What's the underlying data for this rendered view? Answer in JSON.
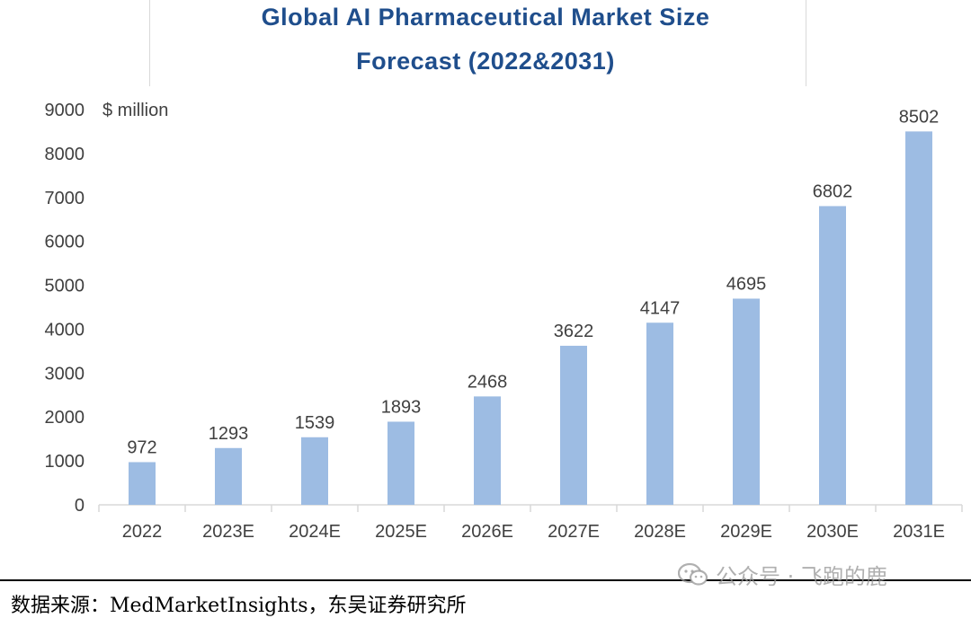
{
  "chart_data": {
    "type": "bar",
    "title": "Global AI Pharmaceutical Market Size",
    "subtitle": "Forecast (2022&2031)",
    "ylabel": "$ million",
    "xlabel": "",
    "ylim": [
      0,
      9000
    ],
    "yticks": [
      0,
      1000,
      2000,
      3000,
      4000,
      5000,
      6000,
      7000,
      8000,
      9000
    ],
    "categories": [
      "2022",
      "2023E",
      "2024E",
      "2025E",
      "2026E",
      "2027E",
      "2028E",
      "2029E",
      "2030E",
      "2031E"
    ],
    "values": [
      972,
      1293,
      1539,
      1893,
      2468,
      3622,
      4147,
      4695,
      6802,
      8502
    ],
    "grid": false,
    "legend": "none",
    "bar_color": "#9dbce3"
  },
  "source": "数据来源：MedMarketInsights，东吴证券研究所",
  "watermark": {
    "icon": "wechat-icon",
    "text": "公众号 · 飞跑的鹿"
  }
}
